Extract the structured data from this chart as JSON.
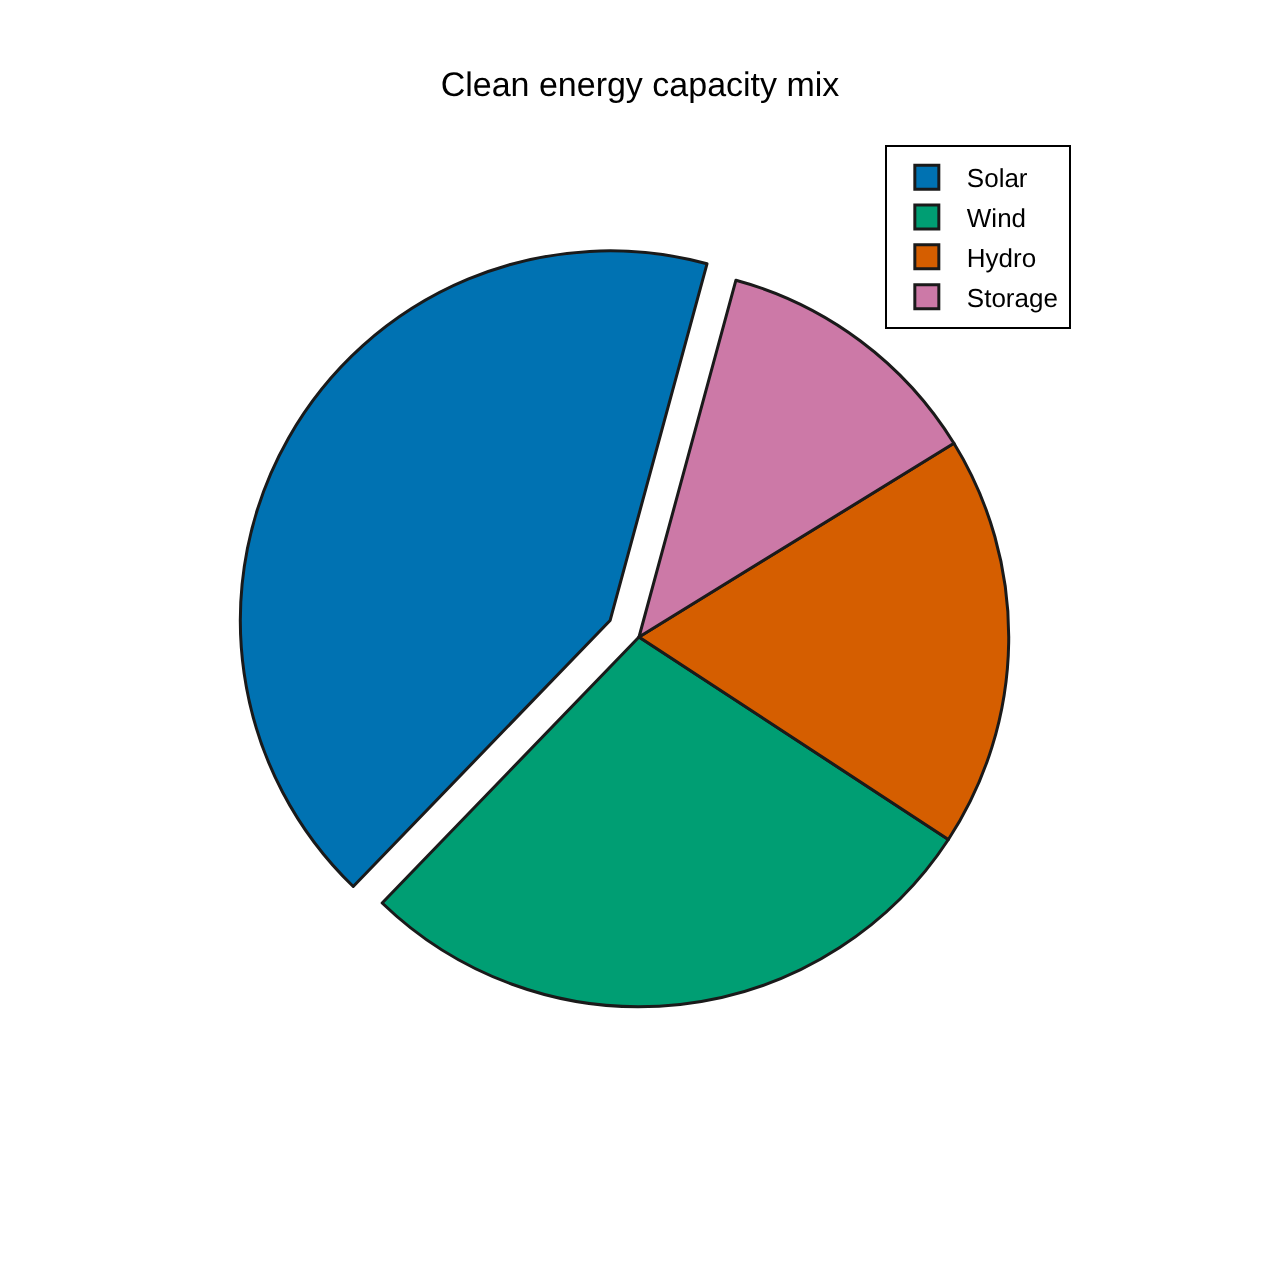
{
  "chart_data": {
    "type": "pie",
    "title": "Clean energy capacity mix",
    "categories": [
      "Solar",
      "Wind",
      "Hydro",
      "Storage"
    ],
    "values": [
      42,
      28,
      18,
      12
    ],
    "colors": [
      "#0072b2",
      "#009e73",
      "#d55e00",
      "#cc79a7"
    ],
    "legend": "top right"
  }
}
